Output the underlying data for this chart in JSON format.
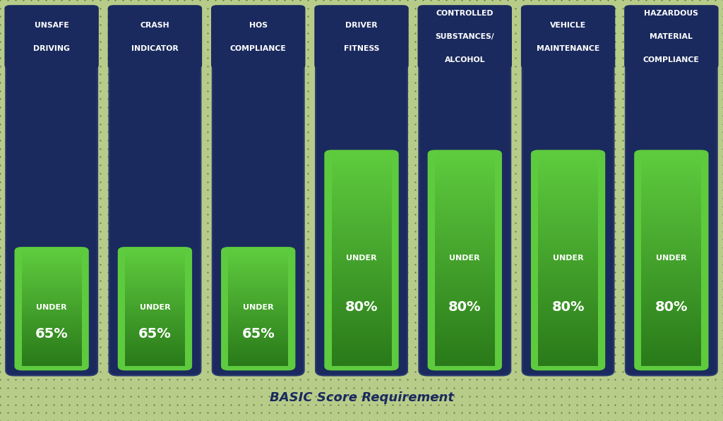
{
  "categories": [
    "UNSAFE\nDRIVING",
    "CRASH\nINDICATOR",
    "HOS\nCOMPLIANCE",
    "DRIVER\nFITNESS",
    "CONTROLLED\nSUBSTANCES/\nALCOHOL",
    "VEHICLE\nMAINTENANCE",
    "HAZARDOUS\nMATERIAL\nCOMPLIANCE"
  ],
  "thresholds": [
    65,
    65,
    65,
    80,
    80,
    80,
    80
  ],
  "bg_color": "#3a5e32",
  "dot_color": "#1a3a1a",
  "arrow_color": "#1a2a5e",
  "bar_bg_color": "#1a2a5e",
  "bar_border_color": "#2a3a6e",
  "green_top_color": "#5ecb3e",
  "green_bottom_color": "#2a7a1a",
  "text_color": "#ffffff",
  "title": "BASIC Score Requirement",
  "title_color": "#1a2a5e",
  "outer_bg_color": "#b8cc8a"
}
